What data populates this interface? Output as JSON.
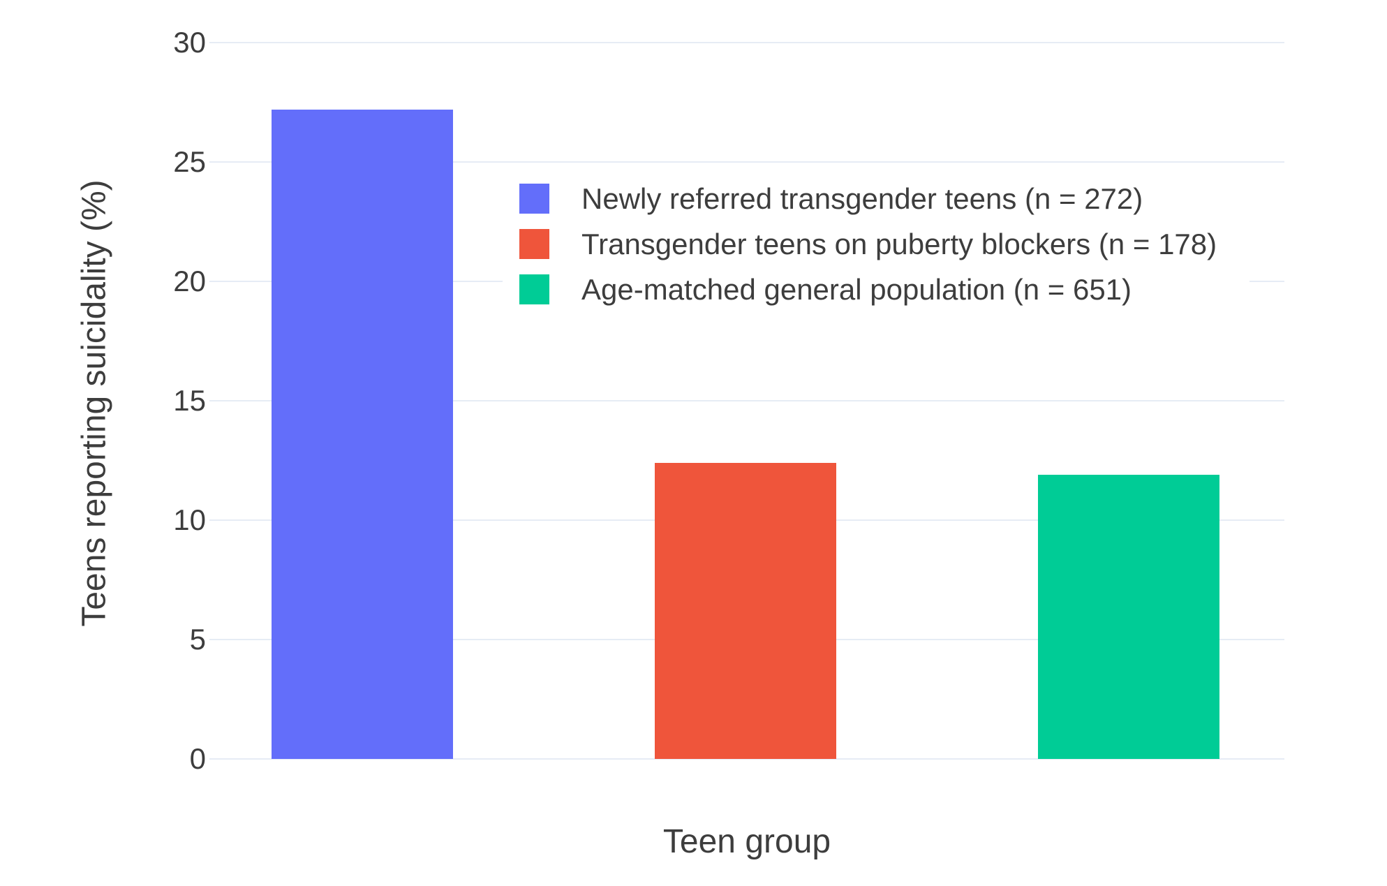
{
  "chart_data": {
    "type": "bar",
    "title": "",
    "xlabel": "Teen group",
    "ylabel": "Teens reporting suicidality (%)",
    "ylim": [
      0,
      30
    ],
    "yticks": [
      0,
      5,
      10,
      15,
      20,
      25,
      30
    ],
    "grid": true,
    "legend_position": "inside-top-center",
    "categories": [
      "Newly referred transgender teens",
      "Transgender teens on puberty blockers",
      "Age-matched general population"
    ],
    "series": [
      {
        "name": "Newly referred transgender teens (n = 272)",
        "value": 27.2,
        "color": "#636EFA"
      },
      {
        "name": "Transgender teens on puberty blockers (n = 178)",
        "value": 12.4,
        "color": "#EF553B"
      },
      {
        "name": "Age-matched general population (n = 651)",
        "value": 11.9,
        "color": "#00CC96"
      }
    ]
  },
  "colors": {
    "grid": "#E6ECF5",
    "text": "#3D3D3D",
    "background": "#FFFFFF",
    "bar_blue": "#636EFA",
    "bar_red": "#EF553B",
    "bar_green": "#00CC96"
  }
}
